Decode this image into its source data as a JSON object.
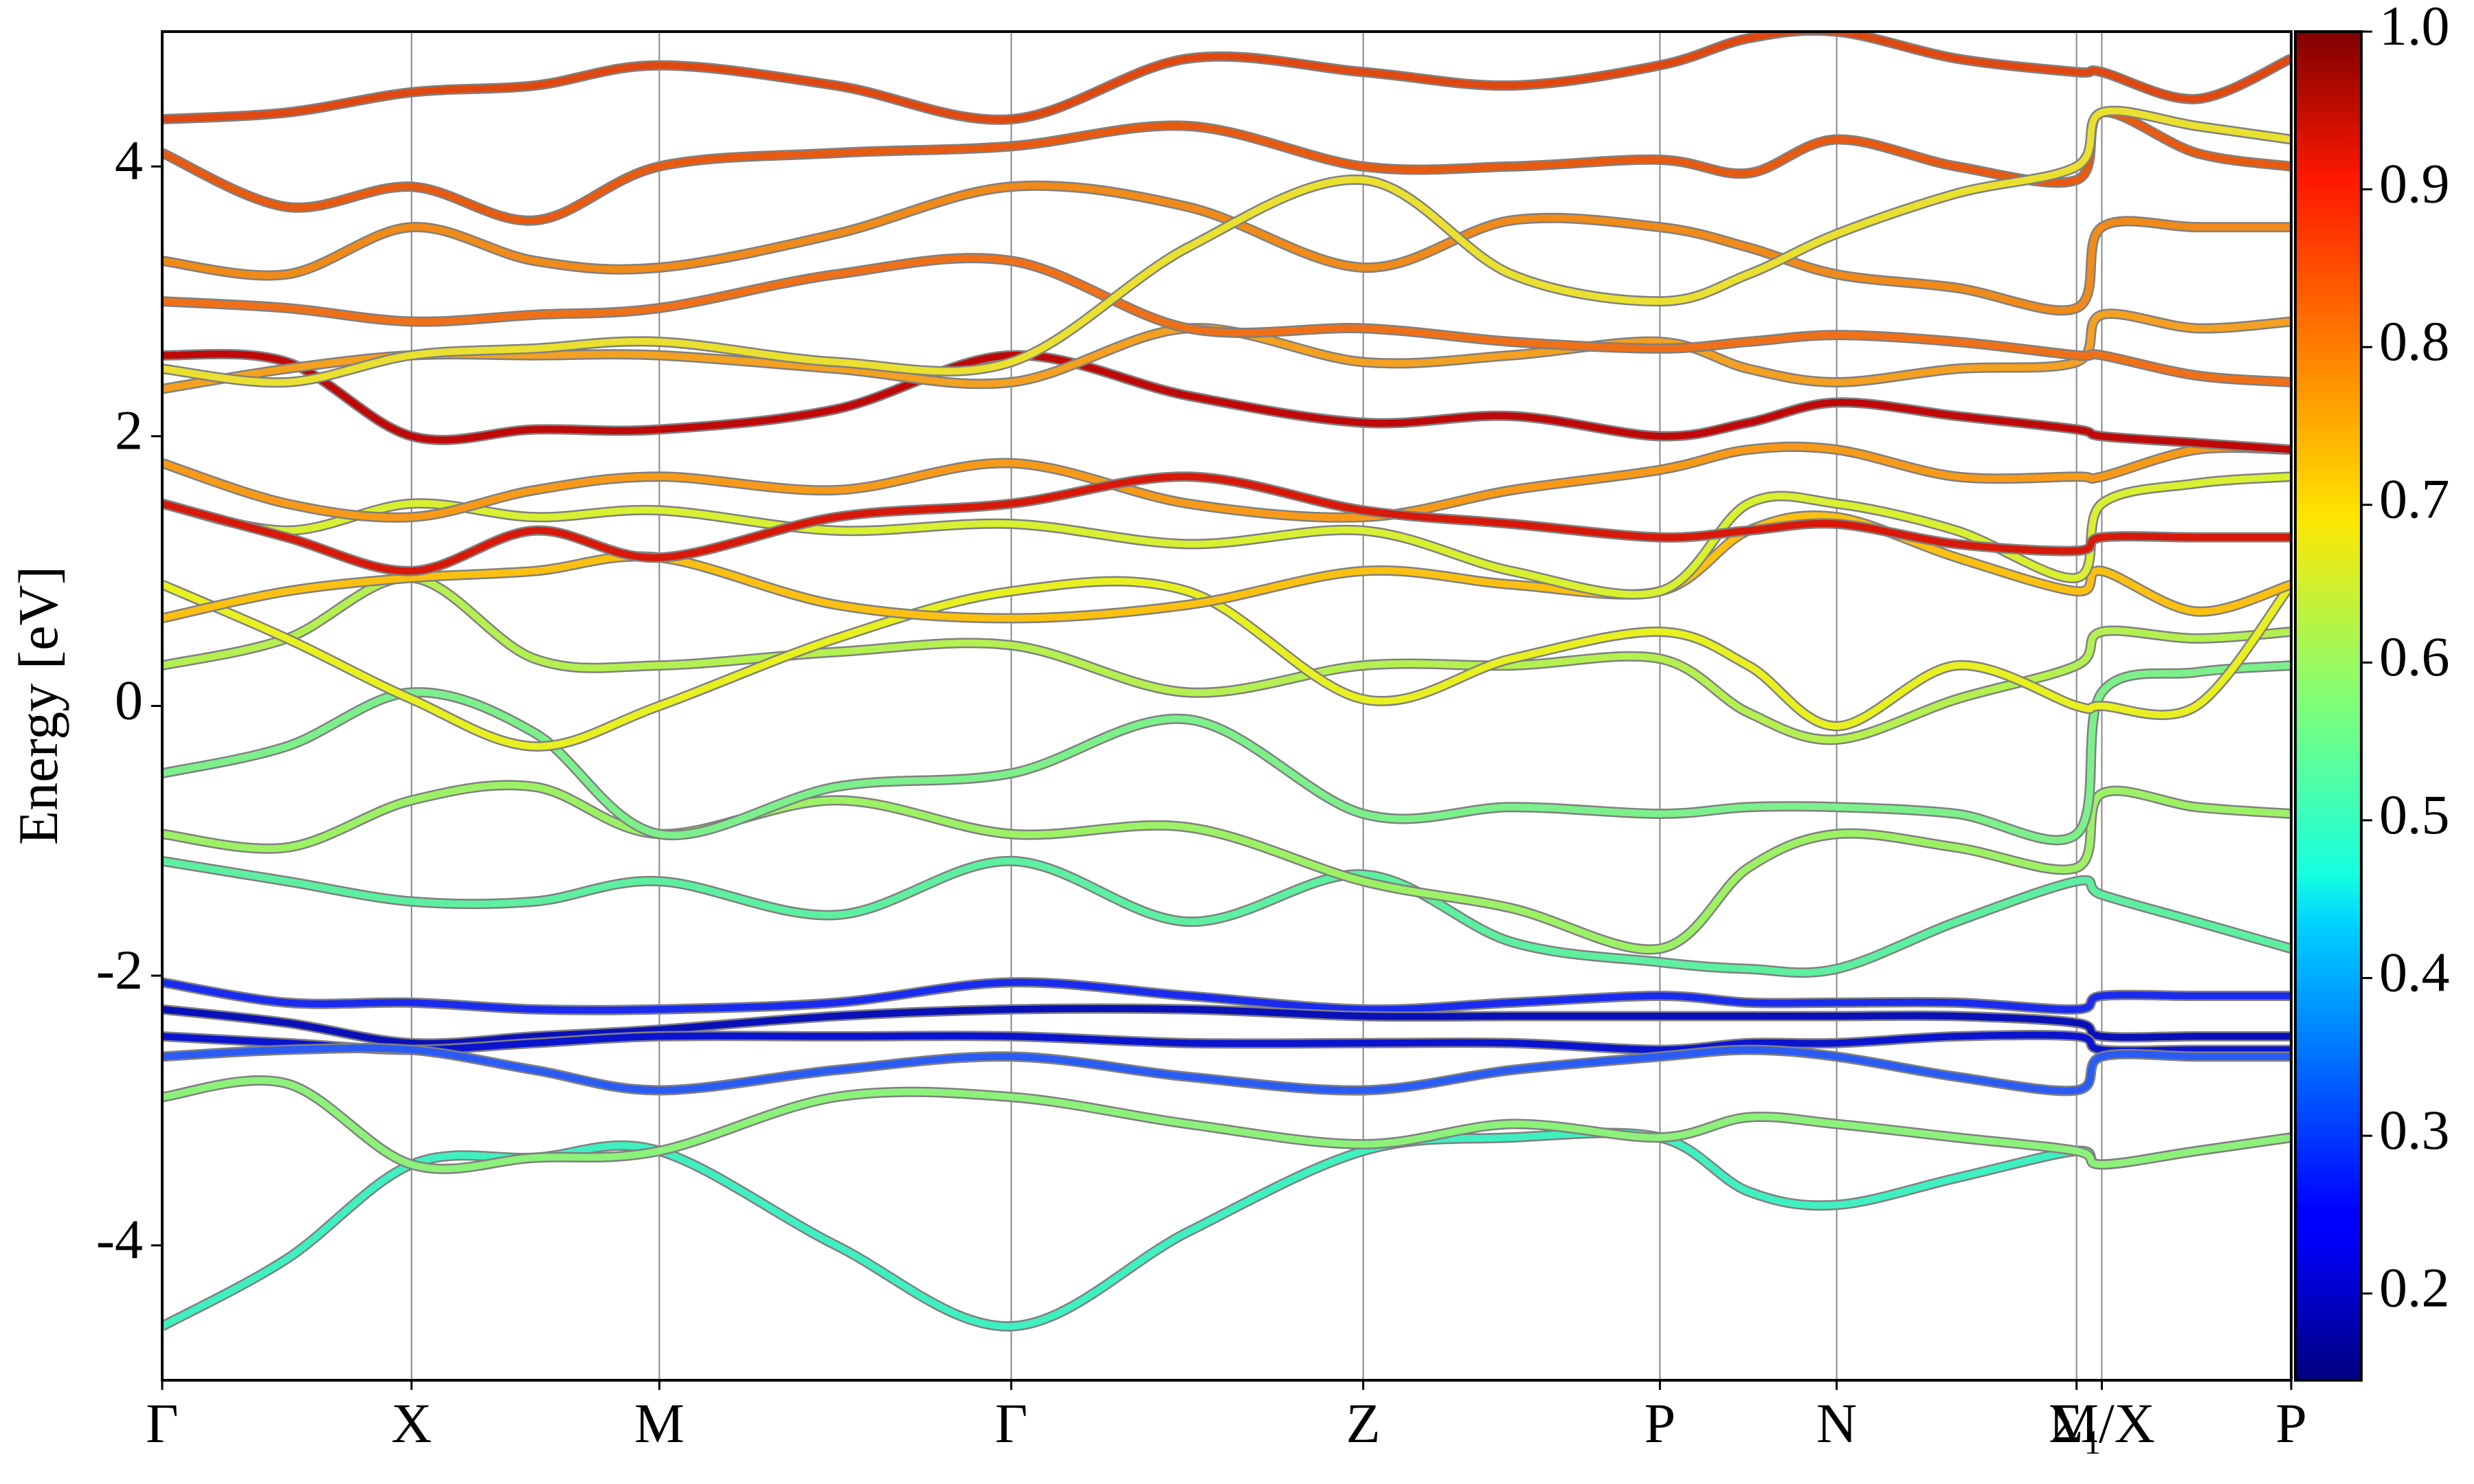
{
  "chart_data": {
    "type": "line",
    "y_label": "Energy [eV]",
    "x": [
      0,
      0.079,
      0.158,
      0.236,
      0.315,
      0.427,
      0.538,
      0.65,
      0.761,
      0.855,
      0.949,
      1.005,
      1.061,
      1.137,
      1.213,
      1.229,
      1.289,
      1.349
    ],
    "xlim": [
      0,
      1.349
    ],
    "xticks": [
      {
        "value": 0,
        "label": "Γ"
      },
      {
        "value": 0.158,
        "label": "X"
      },
      {
        "value": 0.315,
        "label": "M"
      },
      {
        "value": 0.538,
        "label": "Γ"
      },
      {
        "value": 0.761,
        "label": "Z"
      },
      {
        "value": 0.949,
        "label": "P"
      },
      {
        "value": 1.061,
        "label": "N"
      },
      {
        "value": 1.213,
        "label": "Σ₁"
      },
      {
        "value": 1.229,
        "label": "M/X"
      },
      {
        "value": 1.349,
        "label": "P"
      }
    ],
    "ylim": [
      -5,
      5
    ],
    "yticks": [
      -4,
      -2,
      0,
      2,
      4
    ],
    "grid": true,
    "clim": [
      0.145,
      1.0
    ],
    "cticks": [
      0.2,
      0.3,
      0.4,
      0.5,
      0.6,
      0.7,
      0.8,
      0.9,
      {
        "value": 1.0,
        "label": "1.0"
      }
    ],
    "series": [
      {
        "color": "#3ff0c0",
        "values": [
          -4.6,
          -4.1,
          -3.4,
          -3.35,
          -3.3,
          -4.0,
          -4.6,
          -3.9,
          -3.3,
          -3.2,
          -3.2,
          -3.6,
          -3.7,
          -3.5,
          -3.3,
          -3.4,
          -3.3,
          -3.2
        ]
      },
      {
        "color": "#8cf27a",
        "values": [
          -2.9,
          -2.8,
          -3.4,
          -3.35,
          -3.3,
          -2.9,
          -2.9,
          -3.1,
          -3.25,
          -3.1,
          -3.2,
          -3.05,
          -3.1,
          -3.2,
          -3.3,
          -3.4,
          -3.3,
          -3.2
        ]
      },
      {
        "color": "#1a2bf0",
        "values": [
          -2.05,
          -2.2,
          -2.2,
          -2.25,
          -2.25,
          -2.2,
          -2.05,
          -2.15,
          -2.25,
          -2.2,
          -2.15,
          -2.2,
          -2.2,
          -2.2,
          -2.25,
          -2.15,
          -2.15,
          -2.15
        ]
      },
      {
        "color": "#0a10b8",
        "values": [
          -2.25,
          -2.35,
          -2.5,
          -2.45,
          -2.4,
          -2.3,
          -2.25,
          -2.25,
          -2.3,
          -2.3,
          -2.3,
          -2.3,
          -2.3,
          -2.3,
          -2.35,
          -2.45,
          -2.45,
          -2.45
        ]
      },
      {
        "color": "#0a14d0",
        "values": [
          -2.45,
          -2.5,
          -2.55,
          -2.5,
          -2.45,
          -2.45,
          -2.45,
          -2.5,
          -2.5,
          -2.5,
          -2.55,
          -2.5,
          -2.5,
          -2.45,
          -2.45,
          -2.55,
          -2.55,
          -2.55
        ]
      },
      {
        "color": "#2a5cf5",
        "values": [
          -2.6,
          -2.55,
          -2.55,
          -2.7,
          -2.85,
          -2.7,
          -2.6,
          -2.75,
          -2.85,
          -2.7,
          -2.6,
          -2.55,
          -2.6,
          -2.75,
          -2.85,
          -2.6,
          -2.6,
          -2.6
        ]
      },
      {
        "color": "#5cf0a0",
        "values": [
          -1.15,
          -1.3,
          -1.45,
          -1.45,
          -1.3,
          -1.55,
          -1.15,
          -1.6,
          -1.25,
          -1.75,
          -1.9,
          -1.95,
          -1.95,
          -1.6,
          -1.3,
          -1.4,
          -1.6,
          -1.8
        ]
      },
      {
        "color": "#9cf264",
        "values": [
          -0.95,
          -1.05,
          -0.7,
          -0.6,
          -0.95,
          -0.7,
          -0.95,
          -0.9,
          -1.3,
          -1.5,
          -1.8,
          -1.2,
          -0.95,
          -1.05,
          -1.2,
          -0.65,
          -0.75,
          -0.8
        ]
      },
      {
        "color": "#7cf08a",
        "values": [
          -0.5,
          -0.3,
          0.1,
          -0.2,
          -0.95,
          -0.6,
          -0.5,
          -0.1,
          -0.8,
          -0.75,
          -0.8,
          -0.75,
          -0.75,
          -0.8,
          -0.95,
          0.1,
          0.25,
          0.3
        ]
      },
      {
        "color": "#b4f050",
        "values": [
          0.3,
          0.5,
          0.95,
          0.35,
          0.3,
          0.4,
          0.45,
          0.1,
          0.3,
          0.3,
          0.35,
          -0.05,
          -0.25,
          0.05,
          0.3,
          0.55,
          0.5,
          0.55
        ]
      },
      {
        "color": "#e8f020",
        "values": [
          0.9,
          0.5,
          0.05,
          -0.3,
          0.0,
          0.5,
          0.85,
          0.85,
          0.05,
          0.35,
          0.55,
          0.3,
          -0.15,
          0.3,
          0.0,
          0.0,
          0.0,
          0.9
        ]
      },
      {
        "color": "#fcc010",
        "values": [
          0.65,
          0.85,
          0.95,
          1.0,
          1.1,
          0.75,
          0.65,
          0.75,
          1.0,
          0.9,
          0.85,
          1.3,
          1.4,
          1.1,
          0.85,
          1.0,
          0.7,
          0.9
        ]
      },
      {
        "color": "#d8f030",
        "values": [
          1.5,
          1.3,
          1.5,
          1.4,
          1.45,
          1.3,
          1.35,
          1.2,
          1.3,
          1.0,
          0.85,
          1.5,
          1.5,
          1.3,
          0.95,
          1.5,
          1.65,
          1.7
        ]
      },
      {
        "color": "#f89a18",
        "values": [
          1.8,
          1.5,
          1.4,
          1.6,
          1.7,
          1.6,
          1.8,
          1.5,
          1.4,
          1.6,
          1.75,
          1.9,
          1.9,
          1.7,
          1.7,
          1.7,
          1.9,
          1.9
        ]
      },
      {
        "color": "#d81808",
        "values": [
          1.5,
          1.25,
          1.0,
          1.3,
          1.1,
          1.4,
          1.5,
          1.7,
          1.45,
          1.35,
          1.25,
          1.3,
          1.35,
          1.2,
          1.15,
          1.25,
          1.25,
          1.25
        ]
      },
      {
        "color": "#c00808",
        "values": [
          2.6,
          2.55,
          2.0,
          2.05,
          2.05,
          2.2,
          2.6,
          2.3,
          2.1,
          2.15,
          2.0,
          2.1,
          2.25,
          2.15,
          2.05,
          2.0,
          1.95,
          1.9
        ]
      },
      {
        "color": "#f4a020",
        "values": [
          2.35,
          2.5,
          2.6,
          2.6,
          2.6,
          2.5,
          2.4,
          2.8,
          2.55,
          2.6,
          2.7,
          2.5,
          2.4,
          2.5,
          2.55,
          2.9,
          2.8,
          2.85
        ]
      },
      {
        "color": "#f07018",
        "values": [
          3.0,
          2.95,
          2.85,
          2.9,
          2.95,
          3.2,
          3.3,
          2.8,
          2.8,
          2.7,
          2.65,
          2.7,
          2.75,
          2.7,
          2.6,
          2.6,
          2.45,
          2.4
        ]
      },
      {
        "color": "#f08a18",
        "values": [
          3.3,
          3.2,
          3.55,
          3.3,
          3.25,
          3.5,
          3.85,
          3.7,
          3.25,
          3.6,
          3.55,
          3.4,
          3.2,
          3.1,
          2.95,
          3.55,
          3.55,
          3.55
        ]
      },
      {
        "color": "#e85a10",
        "values": [
          4.1,
          3.7,
          3.85,
          3.6,
          4.0,
          4.1,
          4.15,
          4.3,
          4.0,
          4.0,
          4.05,
          3.95,
          4.2,
          4.0,
          3.9,
          4.4,
          4.1,
          4.0
        ]
      },
      {
        "color": "#e04810",
        "values": [
          4.35,
          4.4,
          4.55,
          4.6,
          4.75,
          4.6,
          4.35,
          4.8,
          4.7,
          4.6,
          4.75,
          4.95,
          5.0,
          4.8,
          4.7,
          4.7,
          4.5,
          4.8
        ]
      },
      {
        "color": "#eae030",
        "values": [
          2.5,
          2.4,
          2.6,
          2.65,
          2.7,
          2.55,
          2.55,
          3.4,
          3.9,
          3.2,
          3.0,
          3.2,
          3.5,
          3.8,
          4.0,
          4.4,
          4.3,
          4.2
        ]
      }
    ]
  }
}
